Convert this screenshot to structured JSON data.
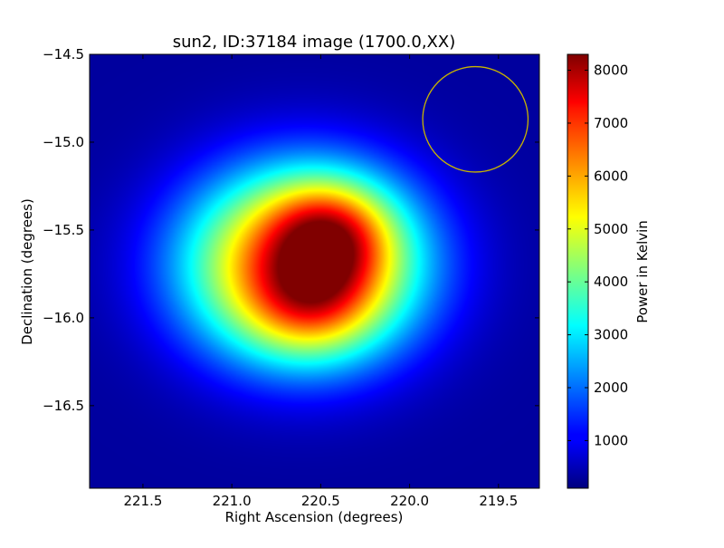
{
  "chart_data": {
    "type": "heatmap",
    "title": "sun2, ID:37184 image (1700.0,XX)",
    "xlabel": "Right Ascension (degrees)",
    "ylabel": "Declination (degrees)",
    "xlim": [
      221.8,
      219.27
    ],
    "ylim": [
      -16.97,
      -14.5
    ],
    "x_ticks": [
      {
        "value": 221.5,
        "label": "221.5"
      },
      {
        "value": 221.0,
        "label": "221.0"
      },
      {
        "value": 220.5,
        "label": "220.5"
      },
      {
        "value": 220.0,
        "label": "220.0"
      },
      {
        "value": 219.5,
        "label": "219.5"
      }
    ],
    "y_ticks": [
      {
        "value": -14.5,
        "label": "−14.5"
      },
      {
        "value": -15.0,
        "label": "−15.0"
      },
      {
        "value": -15.5,
        "label": "−15.5"
      },
      {
        "value": -16.0,
        "label": "−16.0"
      },
      {
        "value": -16.5,
        "label": "−16.5"
      }
    ],
    "colormap": "jet",
    "colorbar": {
      "label": "Power in Kelvin",
      "range": [
        100,
        8300
      ],
      "ticks": [
        {
          "value": 1000,
          "label": "1000"
        },
        {
          "value": 2000,
          "label": "2000"
        },
        {
          "value": 3000,
          "label": "3000"
        },
        {
          "value": 4000,
          "label": "4000"
        },
        {
          "value": 5000,
          "label": "5000"
        },
        {
          "value": 6000,
          "label": "6000"
        },
        {
          "value": 7000,
          "label": "7000"
        },
        {
          "value": 8000,
          "label": "8000"
        }
      ]
    },
    "source": {
      "center_ra": 220.6,
      "center_dec": -15.7,
      "peak": 8300,
      "lobes": [
        {
          "ra": 220.45,
          "dec": -15.52,
          "value": 8300
        },
        {
          "ra": 220.55,
          "dec": -15.87,
          "value": 7900
        }
      ]
    },
    "beam_circle": {
      "ra": 219.63,
      "dec": -14.87,
      "radius_deg": 0.3,
      "color": "#c8b400"
    }
  }
}
